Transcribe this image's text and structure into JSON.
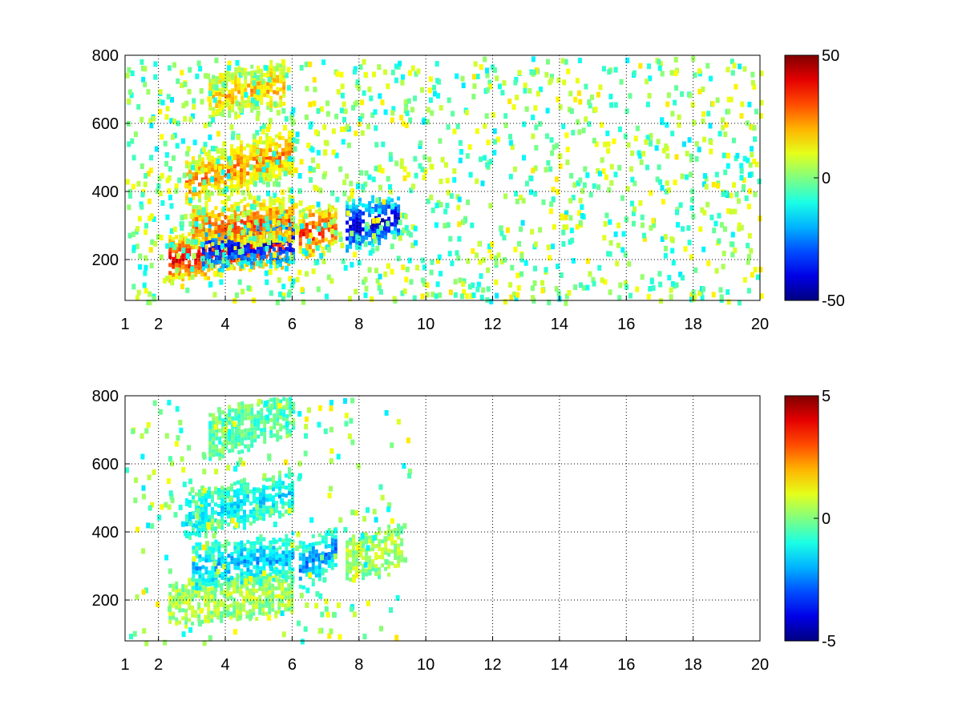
{
  "chart_data": [
    {
      "type": "heatmap",
      "x_ticks": [
        1,
        2,
        4,
        6,
        8,
        10,
        12,
        14,
        16,
        18,
        20
      ],
      "x_tick_labels": [
        "1",
        "2",
        "4",
        "6",
        "8",
        "10",
        "12",
        "14",
        "16",
        "18",
        "20"
      ],
      "y_ticks": [
        200,
        400,
        600,
        800
      ],
      "y_tick_labels": [
        "200",
        "400",
        "600",
        "800"
      ],
      "xlim": [
        1,
        20
      ],
      "ylim": [
        80,
        800
      ],
      "grid": true,
      "colormap": "jet",
      "clim": [
        -50,
        50
      ],
      "colorbar_tick_labels": [
        "50",
        "0",
        "-50"
      ],
      "regions": [
        {
          "name": "band_200",
          "x_range": [
            2.3,
            6
          ],
          "y_center_start": 205,
          "y_center_end": 255,
          "value": 40
        },
        {
          "name": "band_200_low",
          "x_range": [
            3.3,
            6
          ],
          "y_center_start": 235,
          "y_center_end": 260,
          "value": -40
        },
        {
          "name": "band_300",
          "x_range": [
            3,
            6
          ],
          "y_center_start": 300,
          "y_center_end": 320,
          "value": 30
        },
        {
          "name": "band_450",
          "x_range": [
            2.8,
            6
          ],
          "y_center_start": 430,
          "y_center_end": 520,
          "value": 25
        },
        {
          "name": "band_700",
          "x_range": [
            3.5,
            5.8
          ],
          "y_center_start": 680,
          "y_center_end": 720,
          "value": 20
        },
        {
          "name": "patch_6_7",
          "x_range": [
            6.2,
            7.3
          ],
          "y_center_start": 280,
          "y_center_end": 300,
          "value": 35
        },
        {
          "name": "patch_8",
          "x_range": [
            7.6,
            9.2
          ],
          "y_center_start": 300,
          "y_center_end": 330,
          "value": -45
        }
      ]
    },
    {
      "type": "heatmap",
      "x_ticks": [
        1,
        2,
        4,
        6,
        8,
        10,
        12,
        14,
        16,
        18,
        20
      ],
      "x_tick_labels": [
        "1",
        "2",
        "4",
        "6",
        "8",
        "10",
        "12",
        "14",
        "16",
        "18",
        "20"
      ],
      "y_ticks": [
        200,
        400,
        600,
        800
      ],
      "y_tick_labels": [
        "200",
        "400",
        "600",
        "800"
      ],
      "xlim": [
        1,
        20
      ],
      "ylim": [
        80,
        800
      ],
      "grid": true,
      "colormap": "jet",
      "clim": [
        -5,
        5
      ],
      "colorbar_tick_labels": [
        "5",
        "0",
        "-5"
      ],
      "regions": [
        {
          "name": "band_200",
          "x_range": [
            2.3,
            6
          ],
          "y_center_start": 190,
          "y_center_end": 230,
          "value": 0.5
        },
        {
          "name": "band_300",
          "x_range": [
            3,
            6
          ],
          "y_center_start": 300,
          "y_center_end": 330,
          "value": -2.0
        },
        {
          "name": "band_450",
          "x_range": [
            2.8,
            6
          ],
          "y_center_start": 450,
          "y_center_end": 520,
          "value": -1.5
        },
        {
          "name": "band_700",
          "x_range": [
            3.5,
            6
          ],
          "y_center_start": 680,
          "y_center_end": 760,
          "value": -0.5
        },
        {
          "name": "patch_6_7",
          "x_range": [
            6.2,
            7.3
          ],
          "y_center_start": 300,
          "y_center_end": 360,
          "value": -2.5
        },
        {
          "name": "patch_8",
          "x_range": [
            7.6,
            9.3
          ],
          "y_center_start": 320,
          "y_center_end": 360,
          "value": 0.5
        }
      ]
    }
  ]
}
